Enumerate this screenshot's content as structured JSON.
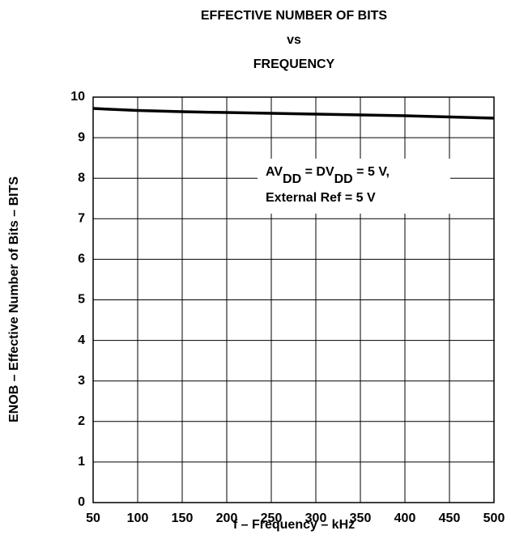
{
  "chart_data": {
    "type": "line",
    "title": [
      "EFFECTIVE NUMBER OF BITS",
      "vs",
      "FREQUENCY"
    ],
    "x_label": "f – Frequency – kHz",
    "y_label": "ENOB – Effective Number of Bits – BITS",
    "annotation": [
      [
        "AV",
        "DD",
        " = DV",
        "DD",
        " = 5 V,"
      ],
      [
        "External Ref = 5 V"
      ]
    ],
    "x": [
      50,
      100,
      150,
      200,
      250,
      300,
      350,
      400,
      450,
      500
    ],
    "series": [
      {
        "name": "ENOB",
        "color": "#000000",
        "values": [
          9.72,
          9.67,
          9.64,
          9.62,
          9.6,
          9.58,
          9.56,
          9.54,
          9.51,
          9.48
        ]
      }
    ],
    "xlim": [
      50,
      500
    ],
    "xticks": [
      50,
      100,
      150,
      200,
      250,
      300,
      350,
      400,
      450,
      500
    ],
    "ylim": [
      0,
      10
    ],
    "yticks": [
      0,
      1,
      2,
      3,
      4,
      5,
      6,
      7,
      8,
      9,
      10
    ],
    "grid": true
  }
}
